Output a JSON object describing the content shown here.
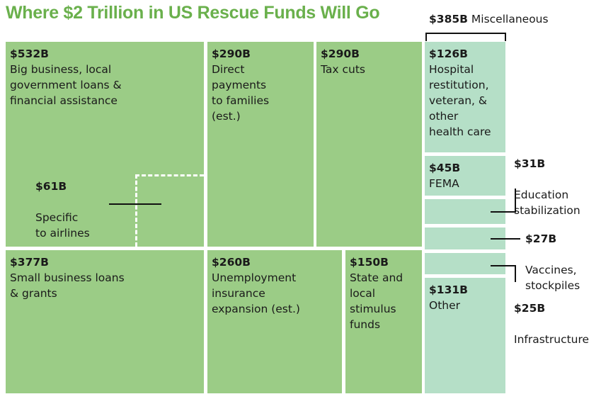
{
  "colors": {
    "title": "#6ab04c",
    "main": "#9bcc86",
    "misc": "#b5dfc7"
  },
  "chart_data": {
    "type": "treemap",
    "title": "Where $2 Trillion in US Rescue Funds Will Go",
    "miscellaneous_group": {
      "amount": "$385B",
      "label": "Miscellaneous",
      "value": 385
    },
    "items": [
      {
        "id": "big-business",
        "amount": "$532B",
        "label": "Big business, local\ngovernment loans &\nfinancial assistance",
        "value": 532,
        "group": "main"
      },
      {
        "id": "airlines",
        "amount": "$61B",
        "label": "Specific\nto airlines",
        "value": 61,
        "group": "main",
        "subset_of": "big-business"
      },
      {
        "id": "direct-payments",
        "amount": "$290B",
        "label": "Direct\npayments\nto families\n(est.)",
        "value": 290,
        "group": "main"
      },
      {
        "id": "tax-cuts",
        "amount": "$290B",
        "label": "Tax cuts",
        "value": 290,
        "group": "main"
      },
      {
        "id": "small-business",
        "amount": "$377B",
        "label": "Small business loans\n& grants",
        "value": 377,
        "group": "main"
      },
      {
        "id": "unemployment",
        "amount": "$260B",
        "label": "Unemployment\ninsurance\nexpansion (est.)",
        "value": 260,
        "group": "main"
      },
      {
        "id": "state-local",
        "amount": "$150B",
        "label": "State and\nlocal\nstimulus\nfunds",
        "value": 150,
        "group": "main"
      },
      {
        "id": "hospital",
        "amount": "$126B",
        "label": "Hospital\nrestitution,\nveteran, &\nother\nhealth care",
        "value": 126,
        "group": "misc"
      },
      {
        "id": "fema",
        "amount": "$45B",
        "label": "FEMA",
        "value": 45,
        "group": "misc"
      },
      {
        "id": "education",
        "amount": "$31B",
        "label": "Education\nstabilization",
        "value": 31,
        "group": "misc"
      },
      {
        "id": "vaccines",
        "amount": "$27B",
        "label": "Vaccines,\nstockpiles",
        "value": 27,
        "group": "misc"
      },
      {
        "id": "infrastructure",
        "amount": "$25B",
        "label": "Infrastructure",
        "value": 25,
        "group": "misc"
      },
      {
        "id": "other",
        "amount": "$131B",
        "label": "Other",
        "value": 131,
        "group": "misc"
      }
    ]
  }
}
